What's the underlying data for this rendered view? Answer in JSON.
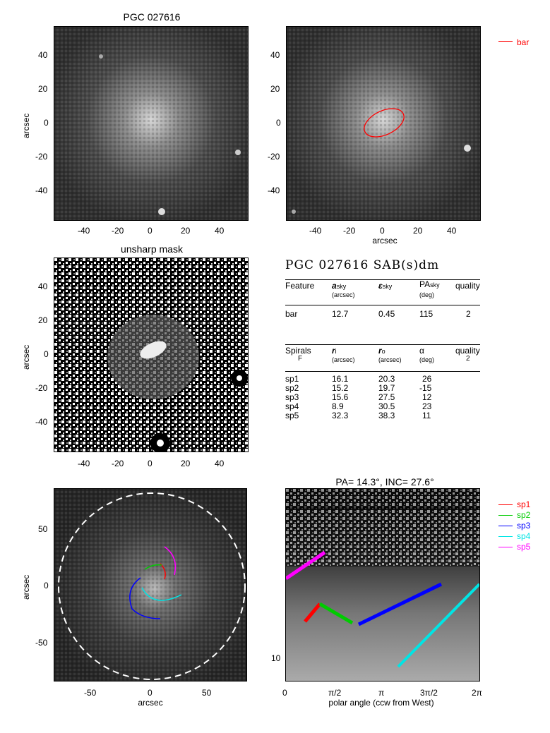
{
  "panels": {
    "p1": {
      "title": "PGC 027616",
      "ylabel": "arcsec",
      "yticks": [
        "40",
        "20",
        "0",
        "-20",
        "-40"
      ],
      "xticks": [
        "-40",
        "-20",
        "0",
        "20",
        "40"
      ]
    },
    "p2": {
      "yticks": [
        "40",
        "20",
        "0",
        "-20",
        "-40"
      ],
      "xticks": [
        "-40",
        "-20",
        "0",
        "20",
        "40"
      ],
      "xlabel": "arcsec",
      "legend": {
        "label": "bar",
        "color": "#ff0000"
      }
    },
    "p3": {
      "title": "unsharp mask",
      "ylabel": "arcsec",
      "yticks": [
        "40",
        "20",
        "0",
        "-20",
        "-40"
      ],
      "xticks": [
        "-40",
        "-20",
        "0",
        "20",
        "40"
      ]
    },
    "p5": {
      "ylabel": "arcsec",
      "xlabel": "arcsec",
      "yticks": [
        "50",
        "0",
        "-50"
      ],
      "xticks": [
        "-50",
        "0",
        "50"
      ]
    },
    "p6": {
      "title": "PA=  14.3°, INC=  27.6°",
      "xlabel": "polar angle (ccw from West)",
      "xticks": [
        "0",
        "π/2",
        "π",
        "3π/2",
        "2π"
      ],
      "yticks": [
        "10"
      ]
    }
  },
  "table": {
    "heading": "PGC 027616  SAB(s)dm",
    "bar_header": {
      "c1": "Feature",
      "c2": "a",
      "c2sub": "sky",
      "c2unit": "(arcsec)",
      "c3": "ε",
      "c3sub": "sky",
      "c4": "PA",
      "c4sub": "sky",
      "c4unit": "(deg)",
      "c5": "quality"
    },
    "bar_row": {
      "c1": "bar",
      "c2": "12.7",
      "c3": "0.45",
      "c4": "115",
      "c5": "2"
    },
    "spiral_header": {
      "c1": "Spirals",
      "c1b": "F",
      "c2": "r",
      "c2sub": "i",
      "c2unit": "(arcsec)",
      "c3": "r",
      "c3sub": "o",
      "c3unit": "(arcsec)",
      "c4": "α",
      "c4unit": "(deg)",
      "c5": "quality",
      "c5b": "2"
    },
    "spirals": [
      {
        "name": "sp1",
        "ri": "16.1",
        "ro": "20.3",
        "alpha": "26"
      },
      {
        "name": "sp2",
        "ri": "15.2",
        "ro": "19.7",
        "alpha": "-15"
      },
      {
        "name": "sp3",
        "ri": "15.6",
        "ro": "27.5",
        "alpha": "12"
      },
      {
        "name": "sp4",
        "ri": "8.9",
        "ro": "30.5",
        "alpha": "23"
      },
      {
        "name": "sp5",
        "ri": "32.3",
        "ro": "38.3",
        "alpha": "11"
      }
    ]
  },
  "legend": [
    {
      "label": "sp1",
      "color": "#ff0000"
    },
    {
      "label": "sp2",
      "color": "#00cc00"
    },
    {
      "label": "sp3",
      "color": "#0000ff"
    },
    {
      "label": "sp4",
      "color": "#00e5e5"
    },
    {
      "label": "sp5",
      "color": "#ff00ff"
    }
  ]
}
